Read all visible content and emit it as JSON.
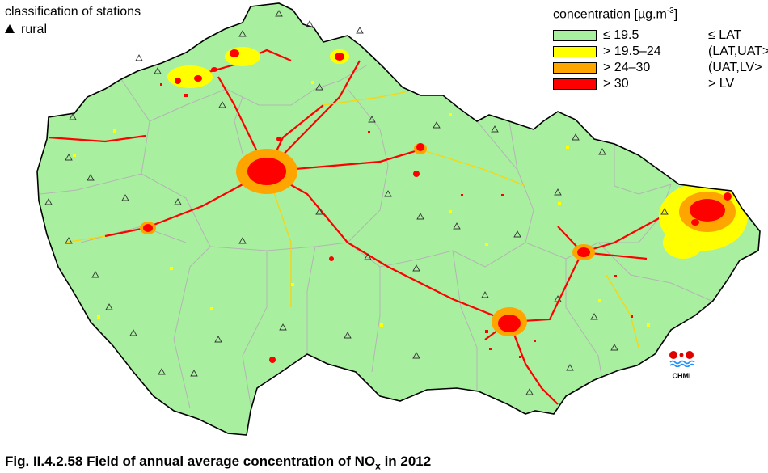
{
  "stations": {
    "title": "classification of stations",
    "item_label": "rural"
  },
  "legend": {
    "title_text": "concentration [µg.m",
    "title_exp": "-3",
    "title_close": "]",
    "classes": [
      {
        "range": "≤ 19.5",
        "label": "≤ LAT",
        "color": "#a8f0a0"
      },
      {
        "range": "> 19.5–24",
        "label": "(LAT,UAT>",
        "color": "#ffff00"
      },
      {
        "range": "> 24–30",
        "label": "(UAT,LV>",
        "color": "#ffa500"
      },
      {
        "range": "> 30",
        "label": "> LV",
        "color": "#ff0000"
      }
    ]
  },
  "logo": {
    "text": "CHMI"
  },
  "caption": {
    "prefix": "Fig. II.4.2.58  Field of annual average concentration of NO",
    "subscript": "x",
    "suffix": " in 2012"
  },
  "map_colors": {
    "background": "#a8f0a0",
    "roads": "#ff0000",
    "borders": "#b4b4b4",
    "outline": "#000000"
  },
  "station_markers": "rural-triangle-icon"
}
